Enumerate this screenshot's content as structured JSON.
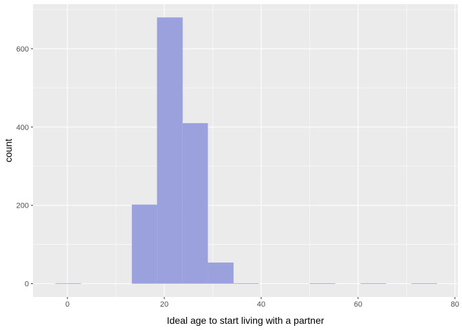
{
  "chart_data": {
    "type": "bar",
    "subtype": "histogram",
    "xlabel": "Ideal age to start living with a partner",
    "ylabel": "count",
    "xlim": [
      -7.1,
      80.6
    ],
    "ylim": [
      -34,
      714
    ],
    "x_ticks": [
      0,
      20,
      40,
      60,
      80
    ],
    "y_ticks": [
      0,
      200,
      400,
      600
    ],
    "grid": true,
    "colors": {
      "panel_background": "#ebebeb",
      "grid": "#ffffff",
      "bar_fill": "#9ba1dd"
    },
    "bins": [
      {
        "x0": -2.5,
        "x1": 2.8,
        "count": 1
      },
      {
        "x0": 2.8,
        "x1": 8.0,
        "count": 0
      },
      {
        "x0": 8.0,
        "x1": 13.3,
        "count": 0
      },
      {
        "x0": 13.3,
        "x1": 18.5,
        "count": 202
      },
      {
        "x0": 18.5,
        "x1": 23.8,
        "count": 680
      },
      {
        "x0": 23.8,
        "x1": 29.0,
        "count": 410
      },
      {
        "x0": 29.0,
        "x1": 34.3,
        "count": 54
      },
      {
        "x0": 34.3,
        "x1": 39.5,
        "count": 1
      },
      {
        "x0": 39.5,
        "x1": 44.8,
        "count": 0
      },
      {
        "x0": 44.8,
        "x1": 50.0,
        "count": 0
      },
      {
        "x0": 50.0,
        "x1": 55.3,
        "count": 1
      },
      {
        "x0": 55.3,
        "x1": 60.5,
        "count": 0
      },
      {
        "x0": 60.5,
        "x1": 65.8,
        "count": 1
      },
      {
        "x0": 65.8,
        "x1": 71.0,
        "count": 0
      },
      {
        "x0": 71.0,
        "x1": 76.3,
        "count": 1
      }
    ]
  }
}
